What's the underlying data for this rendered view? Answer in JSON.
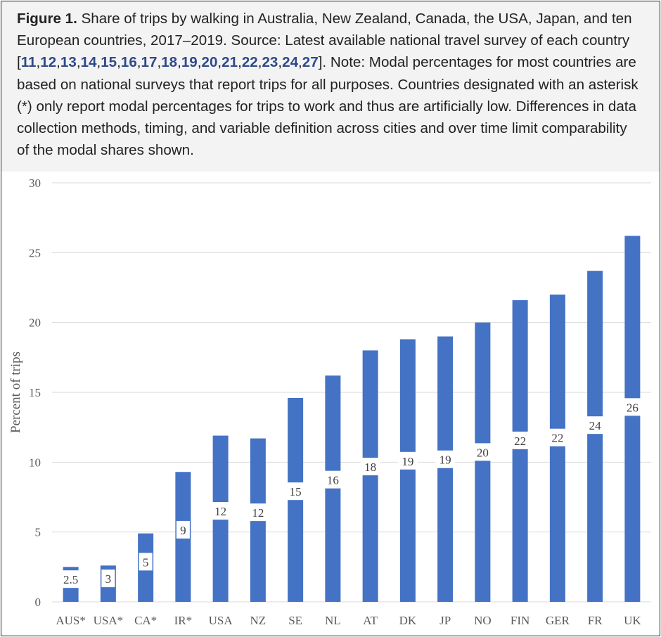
{
  "caption": {
    "lead": "Figure 1.",
    "text_before": "Share of trips by walking in Australia, New Zealand, Canada, the USA, Japan, and ten European countries, 2017–2019. Source: Latest available national travel survey of each country [",
    "refs": [
      "11",
      "12",
      "13",
      "14",
      "15",
      "16",
      "17",
      "18",
      "19",
      "20",
      "21",
      "22",
      "23",
      "24",
      "27"
    ],
    "text_after": "]. Note: Modal percentages for most countries are based on national surveys that report trips for all purposes. Countries designated with an asterisk (*) only report modal percentages for trips to work and thus are artificially low. Differences in data collection methods, timing, and variable definition across cities and over time limit comparability of the modal shares shown."
  },
  "chart_data": {
    "type": "bar",
    "title": "",
    "xlabel": "",
    "ylabel": "Percent of trips",
    "ylim": [
      0,
      30
    ],
    "yticks": [
      0,
      5,
      10,
      15,
      20,
      25,
      30
    ],
    "grid": true,
    "categories": [
      "AUS*",
      "USA*",
      "CA*",
      "IR*",
      "USA",
      "NZ",
      "SE",
      "NL",
      "AT",
      "DK",
      "JP",
      "NO",
      "FIN",
      "GER",
      "FR",
      "UK"
    ],
    "values": [
      2.5,
      2.6,
      4.9,
      9.3,
      11.9,
      11.7,
      14.6,
      16.2,
      18.0,
      18.8,
      19.0,
      20.0,
      21.6,
      22.0,
      23.7,
      26.2
    ],
    "data_labels": [
      "2.5",
      "3",
      "5",
      "9",
      "12",
      "12",
      "15",
      "16",
      "18",
      "19",
      "19",
      "20",
      "22",
      "22",
      "24",
      "26"
    ],
    "bar_color": "#4472c4"
  }
}
